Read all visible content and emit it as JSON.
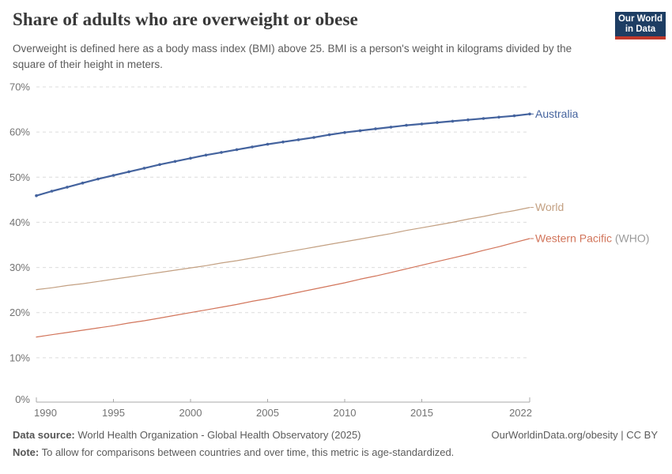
{
  "header": {
    "title": "Share of adults who are overweight or obese",
    "subtitle": "Overweight is defined here as a body mass index (BMI) above 25. BMI is a person's weight in kilograms divided by the square of their height in meters.",
    "logo_line1": "Our World",
    "logo_line2": "in Data",
    "logo_bg": "#1d3d63",
    "logo_stripe": "#c0392b"
  },
  "chart_data": {
    "type": "line",
    "title": "Share of adults who are overweight or obese",
    "xlabel": "",
    "ylabel": "",
    "ylim": [
      0,
      70
    ],
    "ytick_suffix": "%",
    "yticks": [
      0,
      10,
      20,
      30,
      40,
      50,
      60,
      70
    ],
    "xticks": [
      1990,
      1995,
      2000,
      2005,
      2010,
      2015,
      2022
    ],
    "grid": "dashed-horizontal",
    "legend_position": "right-of-line-ends",
    "x": [
      1990,
      1991,
      1992,
      1993,
      1994,
      1995,
      1996,
      1997,
      1998,
      1999,
      2000,
      2001,
      2002,
      2003,
      2004,
      2005,
      2006,
      2007,
      2008,
      2009,
      2010,
      2011,
      2012,
      2013,
      2014,
      2015,
      2016,
      2017,
      2018,
      2019,
      2020,
      2021,
      2022
    ],
    "series": [
      {
        "name": "Australia",
        "name_suffix": "",
        "color": "#44639e",
        "suffix_color": "#9b9b9b",
        "markers": true,
        "line_width": 2.2,
        "values": [
          45.9,
          46.9,
          47.8,
          48.7,
          49.6,
          50.4,
          51.2,
          52.0,
          52.8,
          53.5,
          54.2,
          54.9,
          55.5,
          56.1,
          56.7,
          57.3,
          57.8,
          58.3,
          58.8,
          59.4,
          59.9,
          60.3,
          60.7,
          61.1,
          61.5,
          61.8,
          62.1,
          62.4,
          62.7,
          63.0,
          63.3,
          63.6,
          64.0
        ]
      },
      {
        "name": "World",
        "name_suffix": "",
        "color": "#c3a082",
        "suffix_color": "#9b9b9b",
        "markers": false,
        "line_width": 1.2,
        "values": [
          25.1,
          25.5,
          26.0,
          26.4,
          26.9,
          27.4,
          27.9,
          28.4,
          28.9,
          29.4,
          29.9,
          30.4,
          31.0,
          31.5,
          32.1,
          32.7,
          33.3,
          33.9,
          34.5,
          35.1,
          35.7,
          36.3,
          36.9,
          37.5,
          38.2,
          38.8,
          39.4,
          40.0,
          40.7,
          41.3,
          42.0,
          42.6,
          43.3
        ]
      },
      {
        "name": "Western Pacific",
        "name_suffix": " (WHO)",
        "color": "#d2755b",
        "suffix_color": "#9b9b9b",
        "markers": false,
        "line_width": 1.2,
        "values": [
          14.6,
          15.1,
          15.6,
          16.1,
          16.6,
          17.1,
          17.7,
          18.2,
          18.8,
          19.4,
          20.0,
          20.6,
          21.2,
          21.8,
          22.5,
          23.1,
          23.8,
          24.5,
          25.2,
          25.9,
          26.6,
          27.4,
          28.1,
          28.9,
          29.7,
          30.5,
          31.3,
          32.1,
          32.9,
          33.8,
          34.6,
          35.5,
          36.4
        ]
      }
    ]
  },
  "footer": {
    "source_label": "Data source:",
    "source_text": " World Health Organization - Global Health Observatory (2025)",
    "note_label": "Note:",
    "note_text": " To allow for comparisons between countries and over time, this metric is age-standardized.",
    "link": "OurWorldinData.org/obesity | CC BY"
  },
  "colors": {
    "title": "#383838",
    "text_muted": "#5b5b5b",
    "tick_label": "#737373",
    "gridline": "#dcdcdc",
    "axis_line": "#a8a8a8"
  }
}
